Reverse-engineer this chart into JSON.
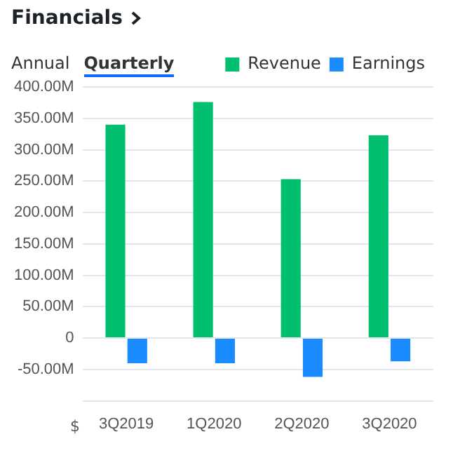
{
  "chart_data": {
    "type": "bar",
    "title": "Financials",
    "annotations": [
      "Annual",
      "Quarterly",
      "$"
    ],
    "categories": [
      "3Q2019",
      "1Q2020",
      "2Q2020",
      "3Q2020"
    ],
    "series": [
      {
        "name": "Revenue",
        "color": "#00bf6f",
        "values": [
          340,
          376,
          253,
          323
        ]
      },
      {
        "name": "Earnings",
        "color": "#1a8cff",
        "values": [
          -40,
          -40,
          -62,
          -37
        ]
      }
    ],
    "ylim": [
      -100,
      400
    ],
    "yticks": [
      {
        "value": -100,
        "label": null
      },
      {
        "value": -50,
        "label": "-50.00M"
      },
      0,
      {
        "value": 50,
        "label": "50.00M"
      },
      {
        "value": 100,
        "label": "100.00M"
      },
      {
        "value": 150,
        "label": "150.00M"
      },
      {
        "value": 200,
        "label": "200.00M"
      },
      {
        "value": 250,
        "label": "250.00M"
      },
      {
        "value": 300,
        "label": "300.00M"
      },
      {
        "value": 350,
        "label": "350.00M"
      },
      {
        "value": 400,
        "label": "400.00M"
      }
    ],
    "grid": "y",
    "legend": "top right"
  }
}
